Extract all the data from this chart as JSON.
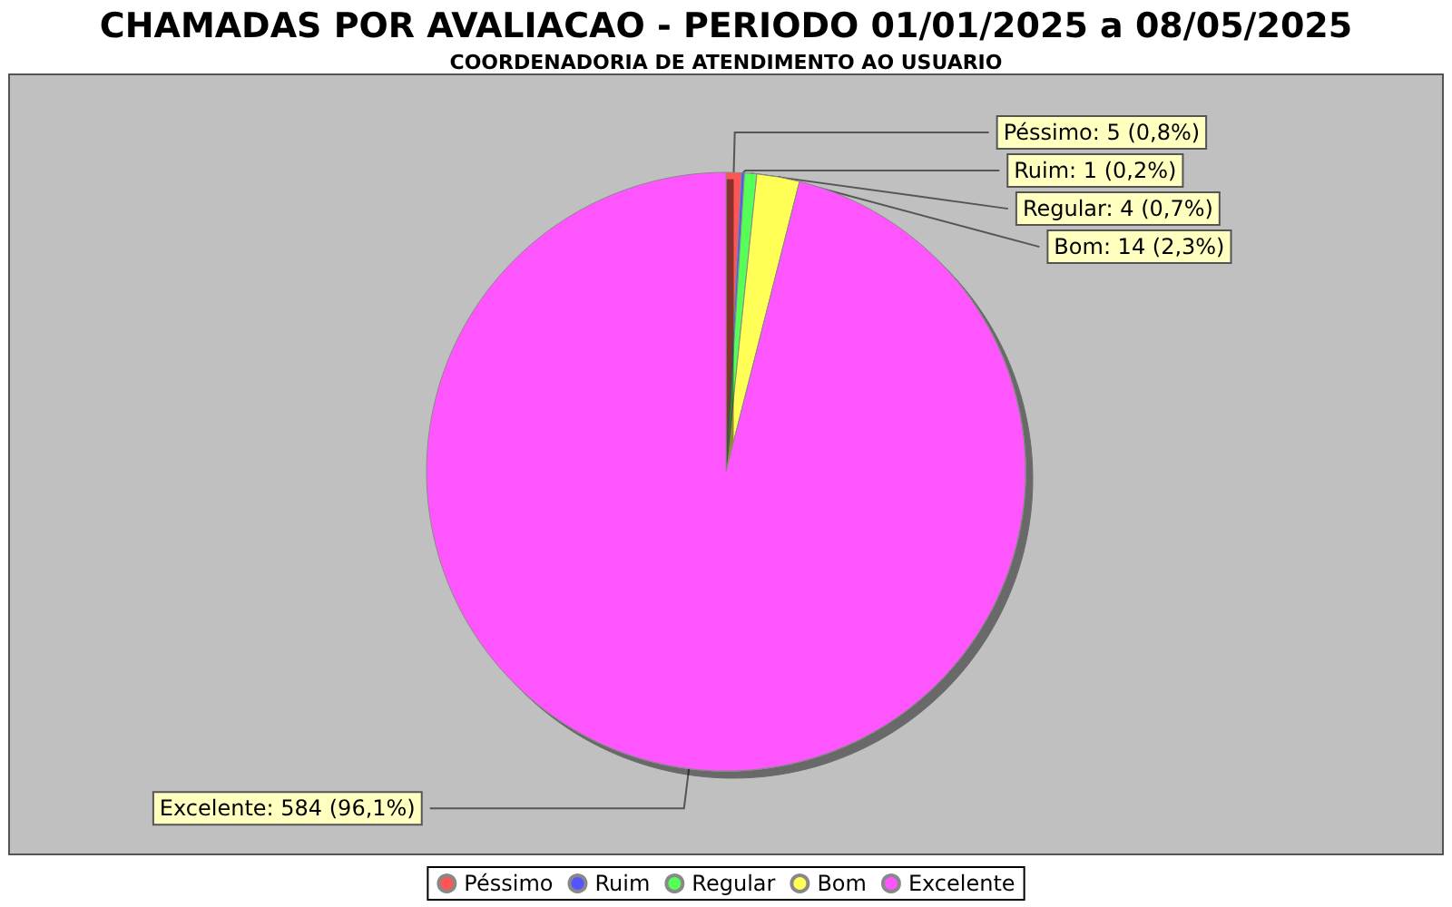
{
  "chart_data": {
    "type": "pie",
    "title": "CHAMADAS POR AVALIACAO - PERIODO 01/01/2025 a 08/05/2025",
    "subtitle": "COORDENADORIA DE ATENDIMENTO AO USUARIO",
    "categories": [
      "Péssimo",
      "Ruim",
      "Regular",
      "Bom",
      "Excelente"
    ],
    "values": [
      5,
      1,
      4,
      14,
      584
    ],
    "colors": [
      "#ff5555",
      "#5555ff",
      "#55ff55",
      "#ffff55",
      "#ff55ff"
    ],
    "value_labels": [
      "Péssimo: 5 (0,8%)",
      "Ruim: 1 (0,2%)",
      "Regular: 4 (0,7%)",
      "Bom: 14 (2,3%)",
      "Excelente: 584 (96,1%)"
    ],
    "legend": "bottom"
  }
}
